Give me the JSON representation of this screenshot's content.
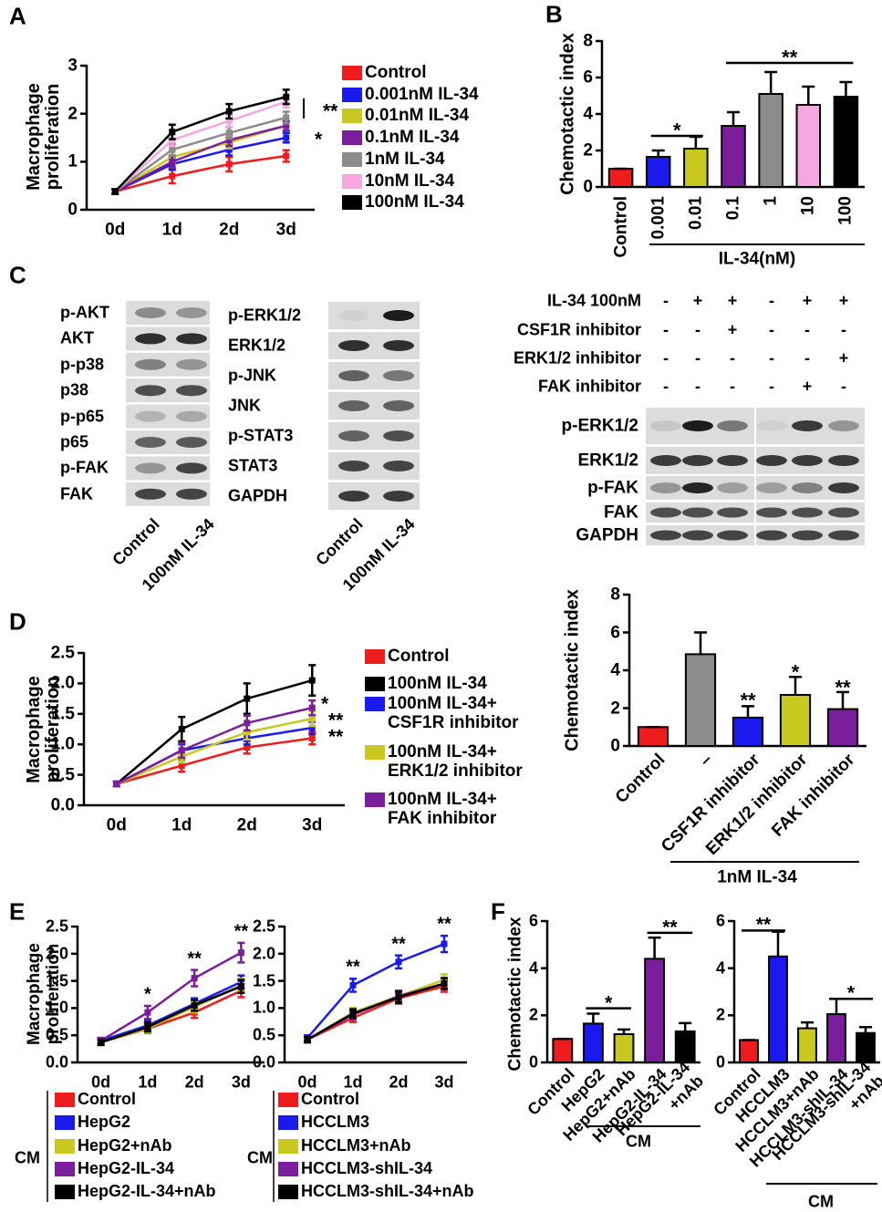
{
  "chart_data": [
    {
      "type": "line",
      "panel": "A",
      "y_label": "Macrophage\nproliferation",
      "categories": [
        "0d",
        "1d",
        "2d",
        "3d"
      ],
      "ylim": [
        0,
        3
      ],
      "yticks": [
        0,
        1,
        2,
        3
      ],
      "series": [
        {
          "name": "Control",
          "color": "#ee1c1c",
          "values": [
            0.38,
            0.7,
            0.95,
            1.12
          ],
          "errors": [
            0.05,
            0.15,
            0.15,
            0.12
          ]
        },
        {
          "name": "0.001nM IL-34",
          "color": "#1a1aee",
          "values": [
            0.38,
            0.95,
            1.25,
            1.5
          ],
          "errors": [
            0.05,
            0.12,
            0.12,
            0.1
          ]
        },
        {
          "name": "0.01nM IL-34",
          "color": "#c8c81e",
          "values": [
            0.38,
            1.1,
            1.4,
            1.75
          ],
          "errors": [
            0.05,
            0.12,
            0.12,
            0.1
          ]
        },
        {
          "name": "0.1nM IL-34",
          "color": "#7a1e9c",
          "values": [
            0.38,
            1.0,
            1.45,
            1.75
          ],
          "errors": [
            0.05,
            0.12,
            0.12,
            0.1
          ]
        },
        {
          "name": "1nM IL-34",
          "color": "#8c8c8c",
          "values": [
            0.38,
            1.25,
            1.6,
            1.92
          ],
          "errors": [
            0.05,
            0.12,
            0.12,
            0.12
          ]
        },
        {
          "name": "10nM IL-34",
          "color": "#f5a8e0",
          "values": [
            0.38,
            1.45,
            1.85,
            2.25
          ],
          "errors": [
            0.05,
            0.12,
            0.12,
            0.12
          ]
        },
        {
          "name": "100nM IL-34",
          "color": "#000000",
          "values": [
            0.38,
            1.62,
            2.05,
            2.35
          ],
          "errors": [
            0.05,
            0.15,
            0.15,
            0.15
          ]
        }
      ],
      "annotations": [
        "**",
        "*"
      ]
    },
    {
      "type": "bar",
      "panel": "B",
      "y_label": "Chemotactic index",
      "categories": [
        "Control",
        "0.001",
        "0.01",
        "0.1",
        "1",
        "10",
        "100"
      ],
      "values": [
        1,
        1.65,
        2.1,
        3.35,
        5.1,
        4.5,
        4.95
      ],
      "errors": [
        0,
        0.35,
        0.65,
        0.75,
        1.2,
        1.0,
        0.8
      ],
      "colors": [
        "#ee1c1c",
        "#1a1aee",
        "#c8c81e",
        "#7a1e9c",
        "#8c8c8c",
        "#f5a8e0",
        "#000000"
      ],
      "ylim": [
        0,
        8
      ],
      "yticks": [
        0,
        2,
        4,
        6,
        8
      ],
      "annotations": [
        "*",
        "**"
      ],
      "group_label": "IL-34(nM)"
    },
    {
      "type": "line",
      "panel": "D",
      "y_label": "Macrophage\nproliferation",
      "categories": [
        "0d",
        "1d",
        "2d",
        "3d"
      ],
      "ylim": [
        0,
        2.5
      ],
      "yticks": [
        {
          "value": 0,
          "label": "0.0"
        },
        0.5,
        {
          "value": 1,
          "label": "1.0"
        },
        1.5,
        {
          "value": 2,
          "label": "2.0"
        },
        2.5
      ],
      "series": [
        {
          "name": "Control",
          "color": "#ee1c1c",
          "values": [
            0.35,
            0.65,
            0.95,
            1.1
          ],
          "errors": [
            0.04,
            0.1,
            0.1,
            0.1
          ]
        },
        {
          "name": "100nM IL-34",
          "color": "#000000",
          "values": [
            0.35,
            1.25,
            1.75,
            2.05
          ],
          "errors": [
            0.04,
            0.2,
            0.25,
            0.25
          ]
        },
        {
          "name": "100nM IL-34+\nCSF1R inhibitor",
          "color": "#1a1aee",
          "values": [
            0.35,
            0.9,
            1.1,
            1.27
          ],
          "errors": [
            0.04,
            0.1,
            0.1,
            0.1
          ]
        },
        {
          "name": "100nM IL-34+\nERK1/2 inhibitor",
          "color": "#c8c81e",
          "values": [
            0.35,
            0.8,
            1.2,
            1.42
          ],
          "errors": [
            0.04,
            0.1,
            0.12,
            0.12
          ]
        },
        {
          "name": "100nM IL-34+\nFAK inhibitor",
          "color": "#7a1e9c",
          "values": [
            0.35,
            0.9,
            1.35,
            1.6
          ],
          "errors": [
            0.04,
            0.12,
            0.12,
            0.12
          ]
        }
      ],
      "annotations": [
        "*",
        "**",
        "**"
      ]
    },
    {
      "type": "bar",
      "y_label": "Chemotactic index",
      "categories": [
        "Control",
        "–",
        "CSF1R inhibitor",
        "ERK1/2 inhibitor",
        "FAK inhibitor"
      ],
      "values": [
        1,
        4.85,
        1.5,
        2.7,
        1.95
      ],
      "errors": [
        0,
        1.15,
        0.6,
        0.95,
        0.9
      ],
      "colors": [
        "#ee1c1c",
        "#8c8c8c",
        "#1a1aee",
        "#c8c81e",
        "#7a1e9c"
      ],
      "ylim": [
        0,
        8
      ],
      "yticks": [
        0,
        2,
        4,
        6,
        8
      ],
      "annotations": [
        "**",
        "*",
        "**"
      ],
      "group_label": "1nM IL-34"
    },
    {
      "type": "line",
      "panel": "E",
      "y_label": "Macrophage\nproliferation",
      "categories": [
        "0d",
        "1d",
        "2d",
        "3d"
      ],
      "ylim": [
        0,
        2.5
      ],
      "yticks": [
        {
          "value": 0,
          "label": "0.0"
        },
        0.5,
        {
          "value": 1,
          "label": "1.0"
        },
        1.5,
        {
          "value": 2,
          "label": "2.0"
        },
        2.5
      ],
      "series": [
        {
          "name": "Control",
          "color": "#ee1c1c",
          "values": [
            0.37,
            0.62,
            0.92,
            1.32
          ],
          "errors": [
            0.05,
            0.08,
            0.1,
            0.12
          ]
        },
        {
          "name": "HepG2",
          "color": "#1a1aee",
          "values": [
            0.4,
            0.68,
            1.08,
            1.48
          ],
          "errors": [
            0.05,
            0.08,
            0.1,
            0.12
          ]
        },
        {
          "name": "HepG2+nAb",
          "color": "#c8c81e",
          "values": [
            0.37,
            0.63,
            1.02,
            1.42
          ],
          "errors": [
            0.05,
            0.08,
            0.1,
            0.12
          ]
        },
        {
          "name": "HepG2-IL-34",
          "color": "#7a1e9c",
          "values": [
            0.4,
            0.92,
            1.55,
            2.02
          ],
          "errors": [
            0.05,
            0.12,
            0.15,
            0.18
          ]
        },
        {
          "name": "HepG2-IL-34+nAb",
          "color": "#000000",
          "values": [
            0.37,
            0.65,
            1.05,
            1.4
          ],
          "errors": [
            0.05,
            0.08,
            0.1,
            0.12
          ]
        }
      ],
      "annotations": [
        "*",
        "**",
        "**"
      ],
      "legend_group": "CM"
    },
    {
      "type": "line",
      "categories": [
        "0d",
        "1d",
        "2d",
        "3d"
      ],
      "ylim": [
        0,
        2.5
      ],
      "yticks": [
        {
          "value": 0,
          "label": "0.0"
        },
        0.5,
        {
          "value": 1,
          "label": "1.0"
        },
        1.5,
        {
          "value": 2,
          "label": "2.0"
        },
        2.5
      ],
      "series": [
        {
          "name": "Control",
          "color": "#ee1c1c",
          "values": [
            0.42,
            0.82,
            1.18,
            1.4
          ],
          "errors": [
            0.05,
            0.08,
            0.1,
            0.1
          ]
        },
        {
          "name": "HCCLM3",
          "color": "#1a1aee",
          "values": [
            0.45,
            1.42,
            1.85,
            2.18
          ],
          "errors": [
            0.05,
            0.12,
            0.12,
            0.15
          ]
        },
        {
          "name": "HCCLM3+nAb",
          "color": "#c8c81e",
          "values": [
            0.42,
            0.92,
            1.22,
            1.52
          ],
          "errors": [
            0.05,
            0.08,
            0.1,
            0.1
          ]
        },
        {
          "name": "HCCLM3-shIL-34",
          "color": "#7a1e9c",
          "values": [
            0.42,
            0.88,
            1.22,
            1.45
          ],
          "errors": [
            0.05,
            0.08,
            0.1,
            0.1
          ]
        },
        {
          "name": "HCCLM3-shIL-34+nAb",
          "color": "#000000",
          "values": [
            0.42,
            0.9,
            1.2,
            1.45
          ],
          "errors": [
            0.05,
            0.08,
            0.1,
            0.1
          ]
        }
      ],
      "annotations": [
        "**",
        "**",
        "**"
      ],
      "legend_group": "CM"
    },
    {
      "type": "bar",
      "panel": "F",
      "y_label": "Chemotactic index",
      "categories": [
        "Control",
        "HepG2",
        "HepG2+nAb",
        "HepG2-IL-34",
        "HepG2-IL-34\n+nAb"
      ],
      "values": [
        1,
        1.65,
        1.2,
        4.4,
        1.32
      ],
      "errors": [
        0,
        0.42,
        0.2,
        0.9,
        0.35
      ],
      "colors": [
        "#ee1c1c",
        "#1a1aee",
        "#c8c81e",
        "#7a1e9c",
        "#000000"
      ],
      "ylim": [
        0,
        6
      ],
      "yticks": [
        0,
        2,
        4,
        6
      ],
      "annotations": [
        "*",
        "**"
      ],
      "group_label": "CM"
    },
    {
      "type": "bar",
      "categories": [
        "Control",
        "HCCLM3",
        "HCCLM3+nAb",
        "HCCLM3-shIL-34",
        "HCCLM3-shIL-34\n+nAb"
      ],
      "values": [
        0.95,
        4.5,
        1.45,
        2.05,
        1.25
      ],
      "errors": [
        0,
        1.05,
        0.25,
        0.65,
        0.25
      ],
      "colors": [
        "#ee1c1c",
        "#1a1aee",
        "#c8c81e",
        "#7a1e9c",
        "#000000"
      ],
      "ylim": [
        0,
        6
      ],
      "yticks": [
        0,
        2,
        4,
        6
      ],
      "annotations": [
        "**",
        "*"
      ],
      "group_label": "CM"
    }
  ],
  "blots": {
    "panel": "C",
    "left": {
      "rows": [
        "p-AKT",
        "AKT",
        "p-p38",
        "p38",
        "p-p65",
        "p65",
        "p-FAK",
        "FAK"
      ],
      "lanes": [
        "Control",
        "100nM IL-34"
      ]
    },
    "middle": {
      "rows": [
        "p-ERK1/2",
        "ERK1/2",
        "p-JNK",
        "JNK",
        "p-STAT3",
        "STAT3",
        "GAPDH"
      ],
      "lanes": [
        "Control",
        "100nM IL-34"
      ]
    },
    "right": {
      "treatments": [
        {
          "name": "IL-34 100nM",
          "signs": [
            "-",
            "+",
            "+",
            "-",
            "+",
            "+"
          ]
        },
        {
          "name": "CSF1R inhibitor",
          "signs": [
            "-",
            "-",
            "+",
            "-",
            "-",
            "-"
          ]
        },
        {
          "name": "ERK1/2 inhibitor",
          "signs": [
            "-",
            "-",
            "-",
            "-",
            "-",
            "+"
          ]
        },
        {
          "name": "FAK inhibitor",
          "signs": [
            "-",
            "-",
            "-",
            "-",
            "+",
            "-"
          ]
        }
      ],
      "rows": [
        "p-ERK1/2",
        "ERK1/2",
        "p-FAK",
        "FAK",
        "GAPDH"
      ]
    }
  }
}
